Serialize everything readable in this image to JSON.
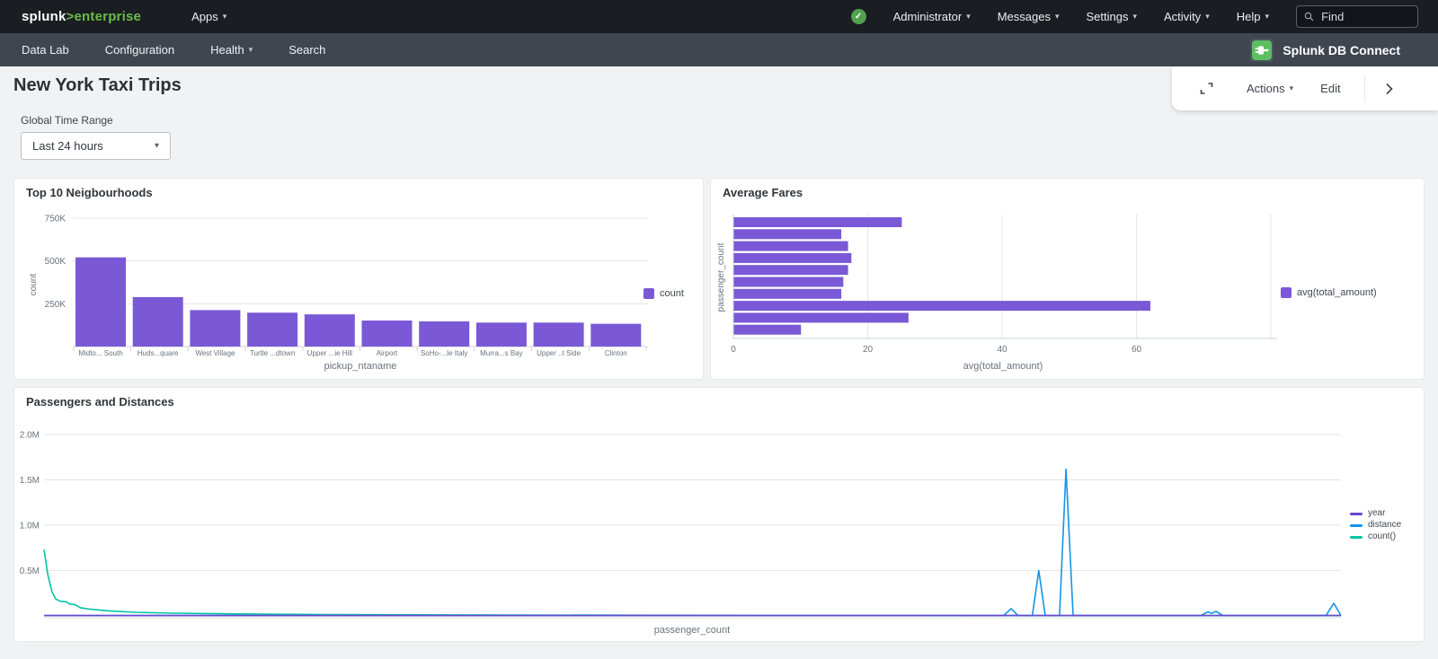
{
  "topnav": {
    "brand": {
      "splunk": "splunk",
      "gt": ">",
      "suffix": "enterprise"
    },
    "apps_label": "Apps",
    "menu_items": [
      "Administrator",
      "Messages",
      "Settings",
      "Activity",
      "Help"
    ],
    "find_placeholder": "Find"
  },
  "appbar": {
    "items": [
      {
        "label": "Data Lab"
      },
      {
        "label": "Configuration"
      },
      {
        "label": "Health"
      },
      {
        "label": "Search"
      }
    ],
    "app_name": "Splunk DB Connect"
  },
  "page": {
    "title": "New York Taxi Trips",
    "toolbar": {
      "actions_label": "Actions",
      "edit_label": "Edit"
    },
    "time_range": {
      "label": "Global Time Range",
      "value": "Last 24 hours"
    }
  },
  "colors": {
    "brand_green": "#6bbb4b",
    "health_green": "#53a051",
    "dbconnect_green": "#5cbf60",
    "purple": "#7a58d6",
    "blue": "#1594e6",
    "teal": "#00c5a1"
  },
  "chart_data": [
    {
      "type": "bar",
      "title": "Top 10 Neigbourhoods",
      "categories": [
        "Midto... South",
        "Huds...quare",
        "West Village",
        "Turtle ...dtown",
        "Upper ...ie Hill",
        "Airport",
        "SoHo-...le Italy",
        "Murra...s Bay",
        "Upper ..t Side",
        "Clinton"
      ],
      "values": [
        521000,
        289000,
        213000,
        198000,
        188000,
        152000,
        147000,
        140000,
        140000,
        133000
      ],
      "xlabel": "pickup_ntaname",
      "ylabel": "count",
      "legend": [
        "count"
      ],
      "yticks": [
        {
          "v": 250000,
          "label": "250K"
        },
        {
          "v": 500000,
          "label": "500K"
        },
        {
          "v": 750000,
          "label": "750K"
        }
      ],
      "ylim": [
        0,
        780000
      ],
      "grid": "horizontal",
      "legend_position": "right",
      "color": "#7a58d6"
    },
    {
      "type": "hbar",
      "title": "Average Fares",
      "values": [
        25,
        16,
        17,
        17.5,
        17,
        16.3,
        16,
        62,
        26,
        10
      ],
      "xlabel": "avg(total_amount)",
      "ylabel": "passenger_count",
      "legend": [
        "avg(total_amount)"
      ],
      "xticks": [
        {
          "v": 0,
          "label": "0"
        },
        {
          "v": 20,
          "label": "20"
        },
        {
          "v": 40,
          "label": "40"
        },
        {
          "v": 60,
          "label": "60"
        },
        {
          "v": 80,
          "label": ""
        }
      ],
      "xlim": [
        0,
        80
      ],
      "grid": "vertical",
      "legend_position": "right",
      "color": "#7a58d6"
    },
    {
      "type": "line",
      "title": "Passengers and Distances",
      "xlabel": "passenger_count",
      "ylabel": "",
      "yticks": [
        {
          "v": 0.5,
          "label": "0.5M"
        },
        {
          "v": 1.0,
          "label": "1.0M"
        },
        {
          "v": 1.5,
          "label": "1.5M"
        },
        {
          "v": 2.0,
          "label": "2.0M"
        }
      ],
      "ylim": [
        0,
        2.1
      ],
      "y_unit": "millions",
      "grid": "horizontal",
      "legend_position": "right",
      "series": [
        {
          "name": "year",
          "color": "#6b47cc",
          "points": [
            [
              0,
              0.004
            ],
            [
              1,
              0.004
            ]
          ]
        },
        {
          "name": "distance",
          "color": "#1594e6",
          "points": [
            [
              0,
              0.004
            ],
            [
              0.74,
              0.004
            ],
            [
              0.7457,
              0.08
            ],
            [
              0.751,
              0.004
            ],
            [
              0.762,
              0.004
            ],
            [
              0.767,
              0.5
            ],
            [
              0.772,
              0.004
            ],
            [
              0.783,
              0.004
            ],
            [
              0.788,
              1.62
            ],
            [
              0.7935,
              0.004
            ],
            [
              0.892,
              0.004
            ],
            [
              0.8974,
              0.045
            ],
            [
              0.9005,
              0.028
            ],
            [
              0.9037,
              0.05
            ],
            [
              0.909,
              0.004
            ],
            [
              0.9885,
              0.004
            ],
            [
              0.9945,
              0.14
            ],
            [
              1,
              0.004
            ]
          ]
        },
        {
          "name": "count()",
          "color": "#00c5a1",
          "points": [
            [
              0,
              0.73
            ],
            [
              0.003,
              0.45
            ],
            [
              0.006,
              0.27
            ],
            [
              0.009,
              0.185
            ],
            [
              0.013,
              0.16
            ],
            [
              0.017,
              0.155
            ],
            [
              0.02,
              0.13
            ],
            [
              0.024,
              0.125
            ],
            [
              0.028,
              0.09
            ],
            [
              0.035,
              0.075
            ],
            [
              0.05,
              0.055
            ],
            [
              0.07,
              0.04
            ],
            [
              0.1,
              0.03
            ],
            [
              0.15,
              0.022
            ],
            [
              0.22,
              0.015
            ],
            [
              0.35,
              0.01
            ],
            [
              0.55,
              0.006
            ],
            [
              0.8,
              0.004
            ],
            [
              1,
              0.004
            ]
          ]
        }
      ]
    }
  ]
}
